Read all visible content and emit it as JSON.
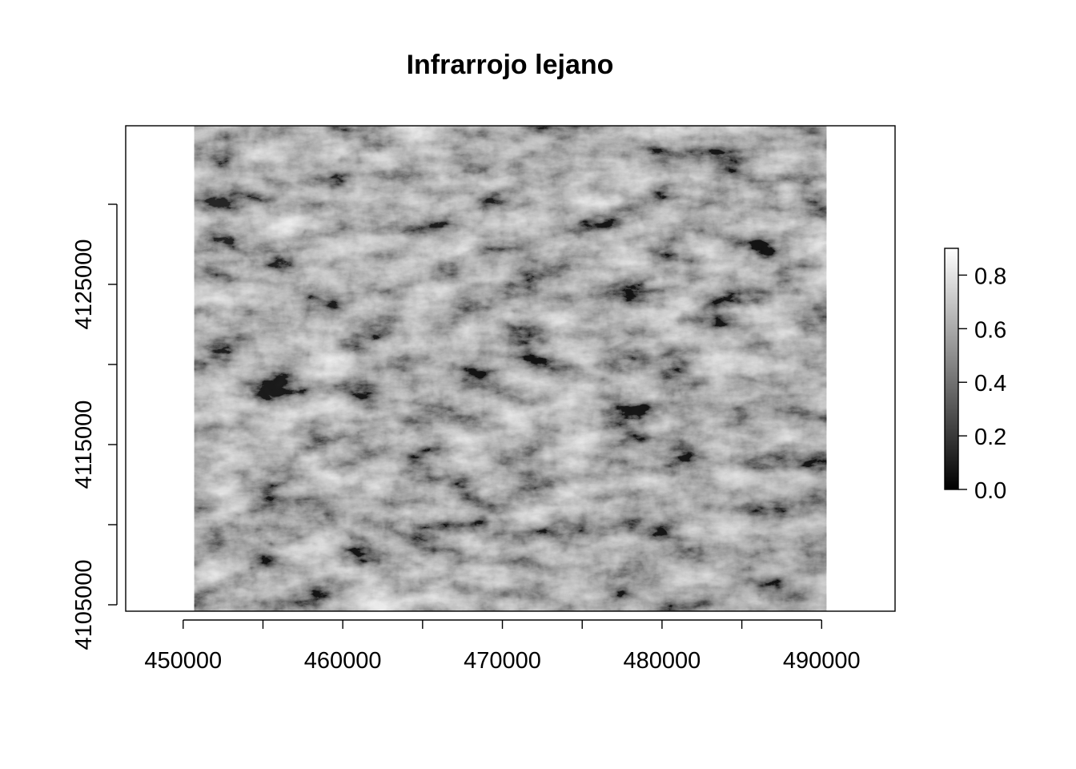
{
  "chart_data": {
    "type": "heatmap",
    "title": "Infrarrojo lejano",
    "xlabel": "",
    "ylabel": "",
    "x_ticks": [
      450000,
      455000,
      460000,
      465000,
      470000,
      475000,
      480000,
      485000,
      490000
    ],
    "x_tick_labels": [
      "450000",
      "",
      "460000",
      "",
      "470000",
      "",
      "480000",
      "",
      "490000"
    ],
    "y_ticks": [
      4105000,
      4110000,
      4115000,
      4120000,
      4125000,
      4130000
    ],
    "y_tick_labels": [
      "4105000",
      "",
      "4115000",
      "",
      "4125000",
      ""
    ],
    "xlim": [
      446400,
      494600
    ],
    "ylim": [
      4104600,
      4134900
    ],
    "raster_extent": {
      "x": [
        450700,
        490300
      ],
      "y": [
        4104600,
        4134900
      ]
    },
    "color_scale": {
      "low_color": "#000000",
      "high_color": "#ffffff",
      "min": 0.0,
      "max": 0.9,
      "ticks": [
        0.0,
        0.2,
        0.4,
        0.6,
        0.8
      ],
      "tick_labels": [
        "0.0",
        "0.2",
        "0.4",
        "0.6",
        "0.8"
      ]
    },
    "legend_position": "right",
    "grid": false
  }
}
